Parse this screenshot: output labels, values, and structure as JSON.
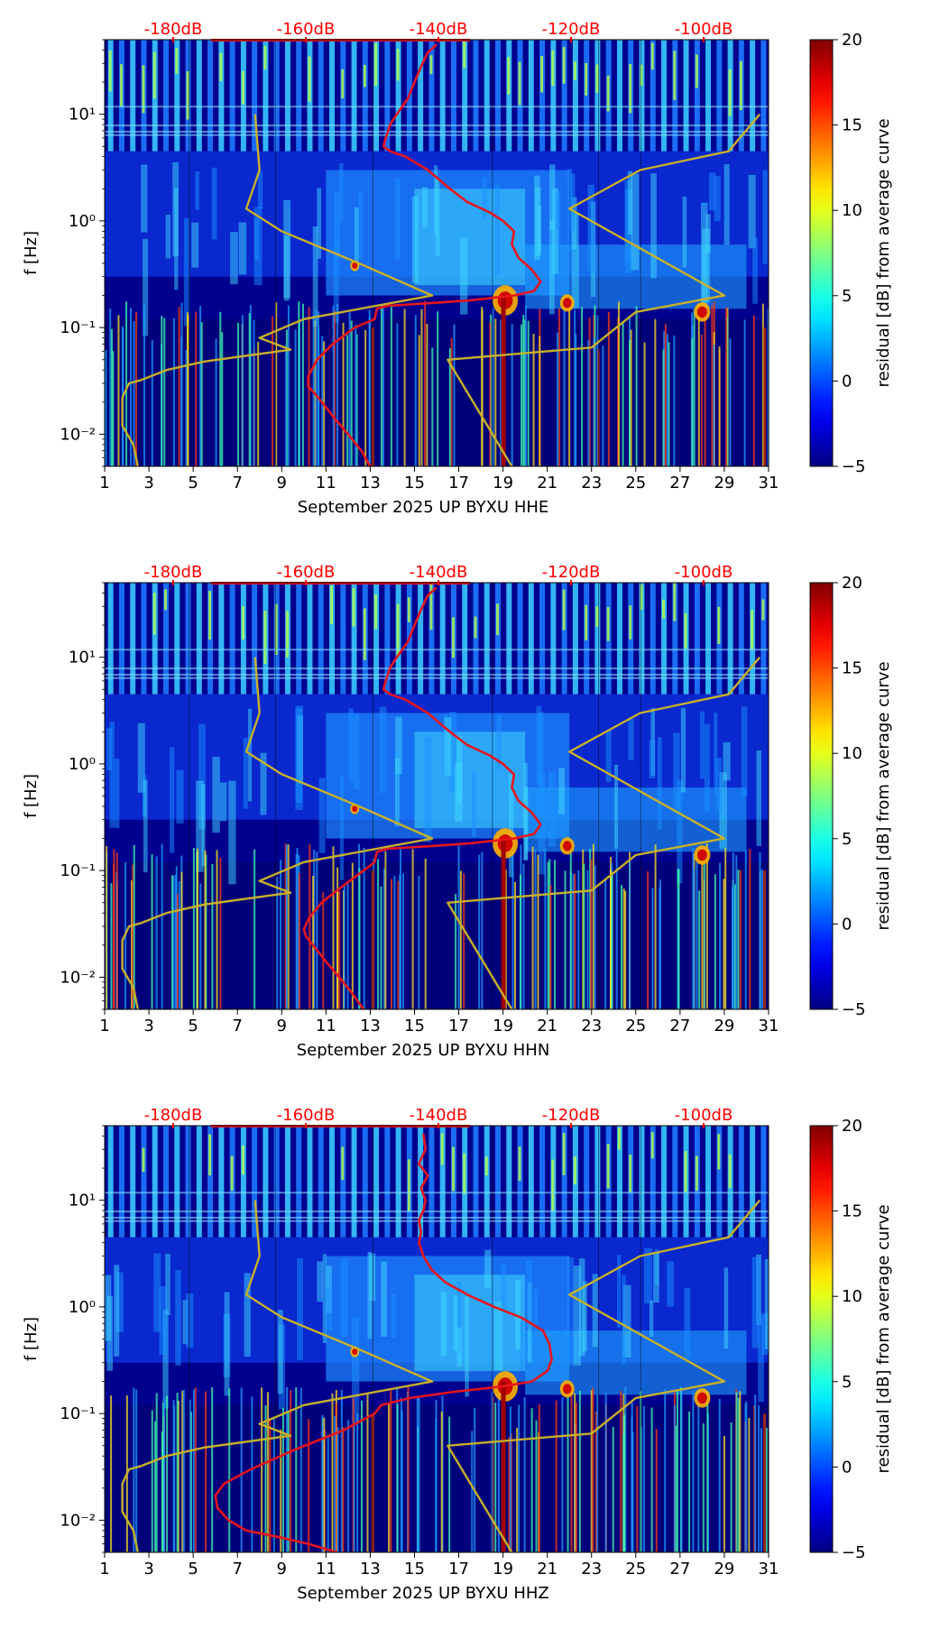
{
  "figure": {
    "colorbar": {
      "label": "residual [dB] from average curve",
      "ticks": [
        -5,
        0,
        5,
        10,
        15,
        20
      ],
      "range": [
        -5,
        20
      ],
      "colormap": "jet"
    },
    "db_scale": {
      "labels": [
        "-180dB",
        "-160dB",
        "-140dB",
        "-120dB",
        "-100dB"
      ],
      "color": "#ff0000"
    },
    "y_axis": {
      "label": "f [Hz]",
      "scale": "log",
      "ticks": [
        "10⁻²",
        "10⁻¹",
        "10⁰",
        "10¹"
      ],
      "range_hz": [
        0.005,
        50
      ]
    },
    "x_axis": {
      "ticks": [
        "1",
        "3",
        "5",
        "7",
        "9",
        "11",
        "13",
        "15",
        "17",
        "19",
        "21",
        "23",
        "25",
        "27",
        "29",
        "31"
      ],
      "range_days": [
        1,
        31
      ]
    },
    "colors": {
      "average_curve": "#e8141c",
      "noise_model": "#c8b02a"
    }
  },
  "chart_data": [
    {
      "type": "heatmap",
      "title": "",
      "xlabel": "September 2025 UP BYXU  HHE",
      "ylabel": "f [Hz]",
      "xlim": [
        1,
        31
      ],
      "ylim": [
        0.005,
        50
      ],
      "yscale": "log",
      "colorbar_label": "residual [dB] from average curve",
      "colorbar_range": [
        -5,
        20
      ],
      "series": [
        {
          "x": [
            13.0,
            12.6,
            12.0,
            11.4,
            10.9,
            10.5,
            10.2,
            10.2,
            10.6,
            11.3,
            12.3,
            13.2,
            13.3,
            13.8,
            15.8,
            17.5,
            19.5,
            20.4,
            20.7,
            20.3,
            19.7,
            19.4,
            19.5,
            19.0,
            18.4,
            17.4,
            16.6,
            15.6,
            14.6,
            13.9,
            13.6,
            13.7,
            13.9,
            14.2,
            14.7,
            15.0,
            15.3,
            15.6,
            16.0
          ],
          "y": [
            0.005,
            0.007,
            0.01,
            0.014,
            0.019,
            0.024,
            0.028,
            0.035,
            0.05,
            0.07,
            0.1,
            0.12,
            0.15,
            0.16,
            0.17,
            0.18,
            0.2,
            0.22,
            0.27,
            0.35,
            0.45,
            0.6,
            0.8,
            1.0,
            1.2,
            1.5,
            2.0,
            3.0,
            4.0,
            4.5,
            5.0,
            6.0,
            8.0,
            10.0,
            14.0,
            20.0,
            28.0,
            38.0,
            45.0
          ]
        },
        {
          "x": [
            2.5,
            2.3,
            1.8,
            1.8,
            2.1,
            2.6,
            3.8,
            5.5,
            9.4,
            8.0,
            10.0,
            15.8,
            12.5,
            9.0,
            7.4,
            8.0,
            7.8
          ],
          "y": [
            0.005,
            0.008,
            0.012,
            0.022,
            0.03,
            0.032,
            0.04,
            0.048,
            0.062,
            0.08,
            0.12,
            0.2,
            0.4,
            0.8,
            1.3,
            3.0,
            10.0
          ]
        },
        {
          "x": [
            19.4,
            16.5,
            23.0,
            25.0,
            29.0,
            22.0,
            25.2,
            29.2,
            30.6
          ],
          "y": [
            0.005,
            0.05,
            0.065,
            0.14,
            0.2,
            1.3,
            3.0,
            4.5,
            10.0
          ]
        }
      ]
    },
    {
      "type": "heatmap",
      "title": "",
      "xlabel": "September 2025 UP BYXU  HHN",
      "ylabel": "f [Hz]",
      "xlim": [
        1,
        31
      ],
      "ylim": [
        0.005,
        50
      ],
      "yscale": "log",
      "colorbar_label": "residual [dB] from average curve",
      "colorbar_range": [
        -5,
        20
      ],
      "series": [
        {
          "x": [
            12.7,
            12.2,
            11.6,
            11.0,
            10.5,
            10.1,
            10.0,
            10.2,
            10.8,
            11.7,
            12.7,
            13.2,
            13.3,
            13.8,
            15.8,
            17.5,
            19.5,
            20.4,
            20.7,
            20.3,
            19.7,
            19.4,
            19.5,
            19.0,
            18.4,
            17.4,
            16.6,
            15.6,
            14.6,
            13.9,
            13.6,
            13.7,
            13.9,
            14.2,
            14.7,
            15.0,
            15.3,
            15.6,
            16.0
          ],
          "y": [
            0.005,
            0.007,
            0.01,
            0.014,
            0.019,
            0.024,
            0.028,
            0.035,
            0.05,
            0.07,
            0.1,
            0.12,
            0.15,
            0.16,
            0.17,
            0.18,
            0.2,
            0.22,
            0.27,
            0.35,
            0.45,
            0.6,
            0.8,
            1.0,
            1.2,
            1.5,
            2.0,
            3.0,
            4.0,
            4.5,
            5.0,
            6.0,
            8.0,
            10.0,
            14.0,
            20.0,
            28.0,
            38.0,
            45.0
          ]
        },
        {
          "x": [
            2.5,
            2.3,
            1.8,
            1.8,
            2.1,
            2.6,
            3.8,
            5.5,
            9.4,
            8.0,
            10.0,
            15.8,
            12.5,
            9.0,
            7.4,
            8.0,
            7.8
          ],
          "y": [
            0.005,
            0.008,
            0.012,
            0.022,
            0.03,
            0.032,
            0.04,
            0.048,
            0.062,
            0.08,
            0.12,
            0.2,
            0.4,
            0.8,
            1.3,
            3.0,
            10.0
          ]
        },
        {
          "x": [
            19.4,
            16.5,
            23.0,
            25.0,
            29.0,
            22.0,
            25.2,
            29.2,
            30.6
          ],
          "y": [
            0.005,
            0.05,
            0.065,
            0.14,
            0.2,
            1.3,
            3.0,
            4.5,
            10.0
          ]
        }
      ]
    },
    {
      "type": "heatmap",
      "title": "",
      "xlabel": "September 2025 UP BYXU  HHZ",
      "ylabel": "f [Hz]",
      "xlim": [
        1,
        31
      ],
      "ylim": [
        0.005,
        50
      ],
      "yscale": "log",
      "colorbar_label": "residual [dB] from average curve",
      "colorbar_range": [
        -5,
        20
      ],
      "series": [
        {
          "x": [
            11.5,
            10.2,
            8.8,
            7.4,
            6.6,
            6.1,
            6.0,
            6.4,
            7.6,
            9.5,
            11.8,
            13.2,
            13.5,
            14.8,
            16.8,
            19.0,
            20.3,
            21.0,
            21.2,
            21.1,
            20.8,
            19.8,
            18.6,
            17.4,
            16.4,
            15.8,
            15.4,
            15.2,
            15.3,
            15.2,
            15.4,
            15.5,
            15.3,
            15.6,
            15.2,
            15.5,
            15.4
          ],
          "y": [
            0.005,
            0.006,
            0.007,
            0.008,
            0.01,
            0.013,
            0.017,
            0.022,
            0.03,
            0.045,
            0.07,
            0.1,
            0.12,
            0.14,
            0.16,
            0.18,
            0.2,
            0.25,
            0.32,
            0.45,
            0.6,
            0.8,
            1.0,
            1.3,
            1.7,
            2.2,
            3.0,
            4.0,
            5.0,
            6.5,
            8.0,
            10.0,
            13.0,
            17.0,
            22.0,
            30.0,
            42.0
          ]
        },
        {
          "x": [
            2.5,
            2.3,
            1.8,
            1.8,
            2.1,
            2.6,
            3.8,
            5.5,
            9.4,
            8.0,
            10.0,
            15.8,
            12.5,
            9.0,
            7.4,
            8.0,
            7.8
          ],
          "y": [
            0.005,
            0.008,
            0.012,
            0.022,
            0.03,
            0.032,
            0.04,
            0.048,
            0.062,
            0.08,
            0.12,
            0.2,
            0.4,
            0.8,
            1.3,
            3.0,
            10.0
          ]
        },
        {
          "x": [
            19.4,
            16.5,
            23.0,
            25.0,
            29.0,
            22.0,
            25.2,
            29.2,
            30.6
          ],
          "y": [
            0.005,
            0.05,
            0.065,
            0.14,
            0.2,
            1.3,
            3.0,
            4.5,
            10.0
          ]
        }
      ]
    }
  ]
}
